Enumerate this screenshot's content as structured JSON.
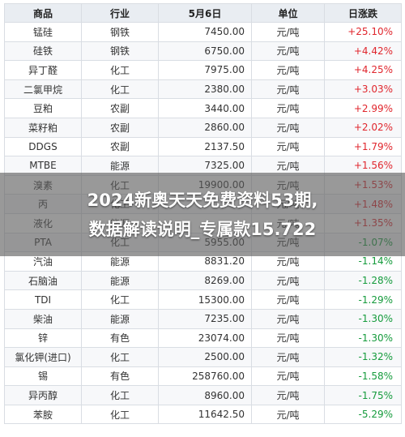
{
  "table": {
    "headers": [
      "商品",
      "行业",
      "5月6日",
      "单位",
      "日涨跌"
    ],
    "rows": [
      {
        "name": "锰硅",
        "industry": "钢铁",
        "price": "7450.00",
        "unit": "元/吨",
        "change": "+25.10%",
        "dir": "up"
      },
      {
        "name": "硅铁",
        "industry": "钢铁",
        "price": "6750.00",
        "unit": "元/吨",
        "change": "+4.42%",
        "dir": "up"
      },
      {
        "name": "异丁醛",
        "industry": "化工",
        "price": "7975.00",
        "unit": "元/吨",
        "change": "+4.25%",
        "dir": "up"
      },
      {
        "name": "二氯甲烷",
        "industry": "化工",
        "price": "2380.00",
        "unit": "元/吨",
        "change": "+3.03%",
        "dir": "up"
      },
      {
        "name": "豆粕",
        "industry": "农副",
        "price": "3440.00",
        "unit": "元/吨",
        "change": "+2.99%",
        "dir": "up"
      },
      {
        "name": "菜籽粕",
        "industry": "农副",
        "price": "2860.00",
        "unit": "元/吨",
        "change": "+2.02%",
        "dir": "up"
      },
      {
        "name": "DDGS",
        "industry": "农副",
        "price": "2137.50",
        "unit": "元/吨",
        "change": "+1.79%",
        "dir": "up"
      },
      {
        "name": "MTBE",
        "industry": "能源",
        "price": "7325.00",
        "unit": "元/吨",
        "change": "+1.56%",
        "dir": "up"
      },
      {
        "name": "溴素",
        "industry": "化工",
        "price": "19900.00",
        "unit": "元/吨",
        "change": "+1.53%",
        "dir": "up"
      },
      {
        "name": "丙",
        "industry": "化工",
        "price": "",
        "unit": "元/吨",
        "change": "+1.48%",
        "dir": "up"
      },
      {
        "name": "液化",
        "industry": "能源",
        "price": "",
        "unit": "元/吨",
        "change": "+1.35%",
        "dir": "up"
      },
      {
        "name": "PTA",
        "industry": "化工",
        "price": "5955.00",
        "unit": "元/吨",
        "change": "-1.07%",
        "dir": "down"
      },
      {
        "name": "汽油",
        "industry": "能源",
        "price": "8831.20",
        "unit": "元/吨",
        "change": "-1.14%",
        "dir": "down"
      },
      {
        "name": "石脑油",
        "industry": "能源",
        "price": "8269.00",
        "unit": "元/吨",
        "change": "-1.28%",
        "dir": "down"
      },
      {
        "name": "TDI",
        "industry": "化工",
        "price": "15300.00",
        "unit": "元/吨",
        "change": "-1.29%",
        "dir": "down"
      },
      {
        "name": "柴油",
        "industry": "能源",
        "price": "7235.00",
        "unit": "元/吨",
        "change": "-1.30%",
        "dir": "down"
      },
      {
        "name": "锌",
        "industry": "有色",
        "price": "23074.00",
        "unit": "元/吨",
        "change": "-1.30%",
        "dir": "down"
      },
      {
        "name": "氯化钾(进口)",
        "industry": "化工",
        "price": "2500.00",
        "unit": "元/吨",
        "change": "-1.32%",
        "dir": "down"
      },
      {
        "name": "锡",
        "industry": "有色",
        "price": "258760.00",
        "unit": "元/吨",
        "change": "-1.58%",
        "dir": "down"
      },
      {
        "name": "异丙醇",
        "industry": "化工",
        "price": "8960.00",
        "unit": "元/吨",
        "change": "-1.75%",
        "dir": "down"
      },
      {
        "name": "苯胺",
        "industry": "化工",
        "price": "11642.50",
        "unit": "元/吨",
        "change": "-5.29%",
        "dir": "down"
      }
    ]
  },
  "overlay": {
    "line1": "2024新奥天天免费资料53期,",
    "line2": "数据解读说明_专属款15.722"
  }
}
